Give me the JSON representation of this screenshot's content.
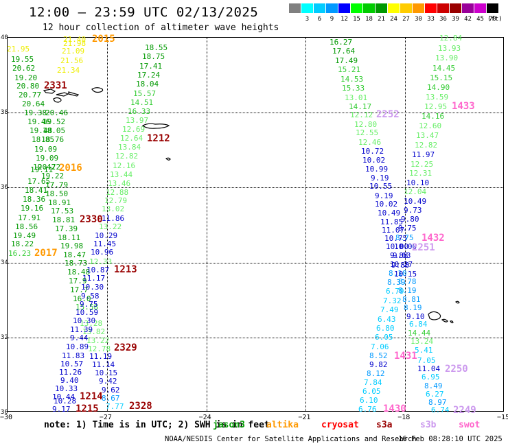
{
  "title": "12:00 – 23:59 UTC 02/13/2025",
  "subtitle": "12 hour collection of altimeter wave heights",
  "legend": {
    "unit": "(ft)",
    "bins": [
      {
        "label": "",
        "color": "#808080"
      },
      {
        "label": "3",
        "color": "#00ffff"
      },
      {
        "label": "6",
        "color": "#00ccff"
      },
      {
        "label": "9",
        "color": "#0099ff"
      },
      {
        "label": "12",
        "color": "#0000ff"
      },
      {
        "label": "15",
        "color": "#00ff00"
      },
      {
        "label": "18",
        "color": "#00cc00"
      },
      {
        "label": "21",
        "color": "#009900"
      },
      {
        "label": "24",
        "color": "#ffff00"
      },
      {
        "label": "27",
        "color": "#ffcc00"
      },
      {
        "label": "30",
        "color": "#ff9900"
      },
      {
        "label": "33",
        "color": "#ff0000"
      },
      {
        "label": "36",
        "color": "#cc0000"
      },
      {
        "label": "39",
        "color": "#990000"
      },
      {
        "label": "42",
        "color": "#990099"
      },
      {
        "label": "45",
        "color": "#cc00cc"
      },
      {
        "label": "70",
        "color": "#000000"
      }
    ]
  },
  "map": {
    "latitudes": [
      "40",
      "38",
      "36",
      "34",
      "32",
      "30"
    ],
    "longitudes": [
      "−30",
      "−27",
      "−24",
      "−21",
      "−18",
      "−15"
    ],
    "observations": [
      [
        "21.40",
        92,
        52,
        "#eeee00"
      ],
      [
        "21.98",
        92,
        58,
        "#eeee00"
      ],
      [
        "21.95",
        10,
        66,
        "#eeee00"
      ],
      [
        "21.09",
        90,
        69,
        "#eeee00"
      ],
      [
        "19.55",
        16,
        81,
        "#009900"
      ],
      [
        "21.56",
        88,
        83,
        "#eeee00"
      ],
      [
        "20.62",
        18,
        94,
        "#009900"
      ],
      [
        "21.34",
        83,
        97,
        "#eeee00"
      ],
      [
        "19.20",
        21,
        108,
        "#009900"
      ],
      [
        "20.80",
        24,
        120,
        "#009900"
      ],
      [
        "20.77",
        27,
        133,
        "#009900"
      ],
      [
        "20.64",
        32,
        146,
        "#009900"
      ],
      [
        "19.38",
        35,
        159,
        "#009900"
      ],
      [
        "20.46",
        66,
        159,
        "#009900"
      ],
      [
        "19.46",
        40,
        172,
        "#009900"
      ],
      [
        "19.52",
        62,
        172,
        "#009900"
      ],
      [
        "19.48",
        43,
        185,
        "#009900"
      ],
      [
        "18.05",
        62,
        185,
        "#009900"
      ],
      [
        "18.85",
        46,
        198,
        "#009900"
      ],
      [
        "18.76",
        60,
        198,
        "#009900"
      ],
      [
        "19.09",
        50,
        212,
        "#009900"
      ],
      [
        "19.09",
        52,
        225,
        "#009900"
      ],
      [
        "19.42",
        48,
        238,
        "#009900"
      ],
      [
        "19.11",
        44,
        242,
        "#009900"
      ],
      [
        "20.72",
        55,
        238,
        "#009900"
      ],
      [
        "19.22",
        60,
        251,
        "#009900"
      ],
      [
        "17.65",
        40,
        259,
        "#009900"
      ],
      [
        "17.79",
        66,
        264,
        "#009900"
      ],
      [
        "18.41",
        36,
        272,
        "#009900"
      ],
      [
        "18.50",
        66,
        277,
        "#009900"
      ],
      [
        "18.36",
        33,
        285,
        "#009900"
      ],
      [
        "18.91",
        70,
        290,
        "#009900"
      ],
      [
        "19.16",
        30,
        298,
        "#009900"
      ],
      [
        "17.53",
        74,
        302,
        "#009900"
      ],
      [
        "17.91",
        26,
        312,
        "#009900"
      ],
      [
        "18.81",
        76,
        315,
        "#009900"
      ],
      [
        "18.56",
        22,
        325,
        "#009900"
      ],
      [
        "17.39",
        80,
        328,
        "#009900"
      ],
      [
        "19.49",
        19,
        338,
        "#009900"
      ],
      [
        "18.11",
        84,
        341,
        "#009900"
      ],
      [
        "18.22",
        16,
        350,
        "#009900"
      ],
      [
        "19.98",
        88,
        353,
        "#009900"
      ],
      [
        "16.23",
        12,
        364,
        "#33cc33"
      ],
      [
        "18.47",
        92,
        366,
        "#009900"
      ],
      [
        "18.73",
        94,
        378,
        "#009900"
      ],
      [
        "18.48",
        98,
        391,
        "#009900"
      ],
      [
        "17.9",
        100,
        404,
        "#009900"
      ],
      [
        "17.7",
        102,
        417,
        "#009900"
      ],
      [
        "16.0",
        106,
        430,
        "#009900"
      ],
      [
        "15.58",
        110,
        442,
        "#33cc33"
      ],
      [
        "13.28",
        116,
        466,
        "#66ee66"
      ],
      [
        "13.82",
        120,
        478,
        "#66ee66"
      ],
      [
        "13.22",
        126,
        491,
        "#66ee66"
      ],
      [
        "12.78",
        128,
        503,
        "#66ee66"
      ],
      [
        "12.33",
        130,
        376,
        "#66ee66"
      ],
      [
        "18.55",
        211,
        64,
        "#009900"
      ],
      [
        "18.75",
        207,
        77,
        "#009900"
      ],
      [
        "17.41",
        203,
        91,
        "#009900"
      ],
      [
        "17.24",
        200,
        104,
        "#009900"
      ],
      [
        "18.04",
        198,
        117,
        "#009900"
      ],
      [
        "15.57",
        194,
        131,
        "#33cc33"
      ],
      [
        "14.51",
        190,
        144,
        "#33cc33"
      ],
      [
        "16.33",
        186,
        157,
        "#33cc33"
      ],
      [
        "13.97",
        183,
        170,
        "#66ee66"
      ],
      [
        "12.69",
        178,
        183,
        "#66ee66"
      ],
      [
        "12.64",
        175,
        196,
        "#66ee66"
      ],
      [
        "13.84",
        172,
        209,
        "#66ee66"
      ],
      [
        "12.82",
        168,
        222,
        "#66ee66"
      ],
      [
        "12.16",
        164,
        236,
        "#66ee66"
      ],
      [
        "13.44",
        160,
        249,
        "#66ee66"
      ],
      [
        "13.46",
        157,
        262,
        "#66ee66"
      ],
      [
        "12.88",
        154,
        275,
        "#66ee66"
      ],
      [
        "12.79",
        152,
        287,
        "#66ee66"
      ],
      [
        "13.02",
        148,
        299,
        "#66ee66"
      ],
      [
        "11.86",
        148,
        313,
        "#0000cc"
      ],
      [
        "13.22",
        144,
        325,
        "#66ee66"
      ],
      [
        "10.29",
        138,
        338,
        "#0000cc"
      ],
      [
        "11.45",
        136,
        350,
        "#0000cc"
      ],
      [
        "10.96",
        132,
        362,
        "#0000cc"
      ],
      [
        "10.87",
        126,
        388,
        "#0000cc"
      ],
      [
        "11.17",
        120,
        400,
        "#0000cc"
      ],
      [
        "10.30",
        118,
        413,
        "#0000cc"
      ],
      [
        "9.58",
        118,
        426,
        "#0000cc"
      ],
      [
        "9.75",
        116,
        438,
        "#0000cc"
      ],
      [
        "10.59",
        110,
        450,
        "#0000cc"
      ],
      [
        "10.30",
        106,
        462,
        "#0000cc"
      ],
      [
        "11.39",
        102,
        475,
        "#0000cc"
      ],
      [
        "9.44",
        102,
        487,
        "#0000cc"
      ],
      [
        "10.89",
        96,
        500,
        "#0000cc"
      ],
      [
        "11.83",
        90,
        513,
        "#0000cc"
      ],
      [
        "11.19",
        130,
        514,
        "#0000cc"
      ],
      [
        "10.57",
        88,
        525,
        "#0000cc"
      ],
      [
        "11.14",
        134,
        526,
        "#0000cc"
      ],
      [
        "11.26",
        86,
        537,
        "#0000cc"
      ],
      [
        "10.15",
        138,
        538,
        "#0000cc"
      ],
      [
        "9.40",
        88,
        549,
        "#0000cc"
      ],
      [
        "9.42",
        144,
        550,
        "#0000cc"
      ],
      [
        "10.33",
        80,
        561,
        "#0000cc"
      ],
      [
        "9.62",
        148,
        563,
        "#0000cc"
      ],
      [
        "10.44",
        76,
        573,
        "#0000cc"
      ],
      [
        "10.28",
        78,
        579,
        "#0000cc"
      ],
      [
        "8.67",
        148,
        575,
        "#0099ff"
      ],
      [
        "9.17",
        76,
        591,
        "#0000cc"
      ],
      [
        "7.77",
        154,
        587,
        "#00ccff"
      ],
      [
        "16.27",
        480,
        56,
        "#009900"
      ],
      [
        "17.64",
        484,
        69,
        "#009900"
      ],
      [
        "17.49",
        488,
        83,
        "#009900"
      ],
      [
        "15.21",
        492,
        96,
        "#33cc33"
      ],
      [
        "14.53",
        496,
        110,
        "#33cc33"
      ],
      [
        "15.33",
        498,
        123,
        "#33cc33"
      ],
      [
        "13.01",
        502,
        137,
        "#66ee66"
      ],
      [
        "14.17",
        508,
        150,
        "#33cc33"
      ],
      [
        "12.12",
        510,
        162,
        "#66ee66"
      ],
      [
        "12.80",
        516,
        176,
        "#66ee66"
      ],
      [
        "12.55",
        518,
        188,
        "#66ee66"
      ],
      [
        "12.46",
        522,
        202,
        "#66ee66"
      ],
      [
        "10.72",
        526,
        215,
        "#0000cc"
      ],
      [
        "10.02",
        528,
        228,
        "#0000cc"
      ],
      [
        "10.99",
        532,
        241,
        "#0000cc"
      ],
      [
        "9.19",
        540,
        254,
        "#0000cc"
      ],
      [
        "10.55",
        538,
        266,
        "#0000cc"
      ],
      [
        "9.19",
        546,
        280,
        "#0000cc"
      ],
      [
        "10.02",
        546,
        292,
        "#0000cc"
      ],
      [
        "10.49",
        550,
        305,
        "#0000cc"
      ],
      [
        "11.85",
        554,
        318,
        "#0000cc"
      ],
      [
        "11.07",
        556,
        330,
        "#0000cc"
      ],
      [
        "10.75",
        560,
        342,
        "#0000cc"
      ],
      [
        "10.00",
        562,
        354,
        "#0000cc"
      ],
      [
        "9.88",
        568,
        367,
        "#0000cc"
      ],
      [
        "10.27",
        568,
        380,
        "#0000cc"
      ],
      [
        "8.10",
        566,
        393,
        "#0099ff"
      ],
      [
        "8.39",
        564,
        406,
        "#0099ff"
      ],
      [
        "6.79",
        562,
        419,
        "#00ccff"
      ],
      [
        "7.32",
        558,
        433,
        "#00ccff"
      ],
      [
        "7.49",
        554,
        446,
        "#00ccff"
      ],
      [
        "6.43",
        550,
        460,
        "#00ccff"
      ],
      [
        "6.80",
        548,
        473,
        "#00ccff"
      ],
      [
        "6.05",
        546,
        486,
        "#00ccff"
      ],
      [
        "7.06",
        540,
        500,
        "#00ccff"
      ],
      [
        "8.52",
        538,
        513,
        "#0099ff"
      ],
      [
        "9.82",
        538,
        526,
        "#0000cc"
      ],
      [
        "8.12",
        534,
        539,
        "#0099ff"
      ],
      [
        "7.84",
        530,
        552,
        "#00ccff"
      ],
      [
        "6.05",
        528,
        565,
        "#00ccff"
      ],
      [
        "6.10",
        524,
        578,
        "#00ccff"
      ],
      [
        "6.76",
        522,
        591,
        "#00ccff"
      ],
      [
        "12.84",
        640,
        50,
        "#66ee66"
      ],
      [
        "13.93",
        638,
        65,
        "#66ee66"
      ],
      [
        "13.90",
        634,
        79,
        "#66ee66"
      ],
      [
        "14.45",
        630,
        94,
        "#33cc33"
      ],
      [
        "15.15",
        626,
        108,
        "#33cc33"
      ],
      [
        "14.90",
        622,
        122,
        "#33cc33"
      ],
      [
        "13.59",
        620,
        136,
        "#66ee66"
      ],
      [
        "12.95",
        618,
        150,
        "#66ee66"
      ],
      [
        "14.16",
        614,
        164,
        "#33cc33"
      ],
      [
        "12.60",
        610,
        178,
        "#66ee66"
      ],
      [
        "13.47",
        606,
        192,
        "#66ee66"
      ],
      [
        "12.82",
        604,
        206,
        "#66ee66"
      ],
      [
        "11.97",
        600,
        220,
        "#0000cc"
      ],
      [
        "12.25",
        598,
        234,
        "#66ee66"
      ],
      [
        "12.31",
        596,
        247,
        "#66ee66"
      ],
      [
        "10.10",
        592,
        261,
        "#0000cc"
      ],
      [
        "12.04",
        588,
        274,
        "#66ee66"
      ],
      [
        "10.49",
        588,
        288,
        "#0000cc"
      ],
      [
        "9.73",
        588,
        301,
        "#0000cc"
      ],
      [
        "9.80",
        584,
        314,
        "#0000cc"
      ],
      [
        "9.75",
        580,
        327,
        "#0000cc"
      ],
      [
        "8.75",
        576,
        341,
        "#0099ff"
      ],
      [
        "10.00",
        574,
        354,
        "#0000cc"
      ],
      [
        "9.63",
        572,
        367,
        "#0000cc"
      ],
      [
        "9.80",
        570,
        381,
        "#0000cc"
      ],
      [
        "10.15",
        574,
        394,
        "#0000cc"
      ],
      [
        "8.78",
        580,
        405,
        "#0099ff"
      ],
      [
        "8.19",
        580,
        418,
        "#0099ff"
      ],
      [
        "8.81",
        586,
        431,
        "#0099ff"
      ],
      [
        "8.19",
        588,
        443,
        "#0099ff"
      ],
      [
        "9.10",
        592,
        456,
        "#0000cc"
      ],
      [
        "6.84",
        596,
        467,
        "#00ccff"
      ],
      [
        "14.44",
        594,
        480,
        "#33cc33"
      ],
      [
        "13.24",
        598,
        492,
        "#66ee66"
      ],
      [
        "5.41",
        604,
        505,
        "#00ccff"
      ],
      [
        "7.05",
        608,
        520,
        "#00ccff"
      ],
      [
        "11.04",
        608,
        532,
        "#0000cc"
      ],
      [
        "6.95",
        614,
        544,
        "#00ccff"
      ],
      [
        "8.49",
        618,
        557,
        "#0099ff"
      ],
      [
        "6.27",
        620,
        569,
        "#00ccff"
      ],
      [
        "8.97",
        624,
        581,
        "#0099ff"
      ],
      [
        "6.74",
        628,
        592,
        "#00ccff"
      ]
    ],
    "passes": [
      [
        "2015",
        134,
        50,
        "#ff9900"
      ],
      [
        "2331",
        64,
        118,
        "#990000"
      ],
      [
        "2016",
        86,
        238,
        "#ff9900"
      ],
      [
        "2017",
        50,
        362,
        "#ff9900"
      ],
      [
        "2330",
        116,
        313,
        "#990000"
      ],
      [
        "1213",
        166,
        386,
        "#990000"
      ],
      [
        "2329",
        166,
        500,
        "#990000"
      ],
      [
        "1212",
        214,
        195,
        "#990000"
      ],
      [
        "1214",
        116,
        571,
        "#990000"
      ],
      [
        "1215",
        110,
        589,
        "#990000"
      ],
      [
        "2328",
        188,
        585,
        "#990000"
      ],
      [
        "2252",
        548,
        160,
        "#cc99ee"
      ],
      [
        "1433",
        658,
        148,
        "#ff66cc"
      ],
      [
        "1432",
        614,
        340,
        "#ff66cc"
      ],
      [
        "2251",
        600,
        354,
        "#cc99ee"
      ],
      [
        "1431",
        574,
        512,
        "#ff66cc"
      ],
      [
        "2250",
        648,
        531,
        "#cc99ee"
      ],
      [
        "1430",
        558,
        589,
        "#ff66cc"
      ],
      [
        "2249",
        660,
        591,
        "#cc99ee"
      ]
    ]
  },
  "note": {
    "text": "note: 1) Time is in UTC; 2) SWH is in feet",
    "satellites": [
      {
        "name": "jason3",
        "color": "#009900"
      },
      {
        "name": "altika",
        "color": "#ff9900"
      },
      {
        "name": "cryosat",
        "color": "#ff0000"
      },
      {
        "name": "s3a",
        "color": "#990000"
      },
      {
        "name": "s3b",
        "color": "#cc99ee"
      },
      {
        "name": "swot",
        "color": "#ff66cc"
      }
    ]
  },
  "footer": {
    "source": "NOAA/NESDIS Center for Satellite Applications and Research",
    "time": "16 Feb 08:28:10 UTC 2025"
  }
}
